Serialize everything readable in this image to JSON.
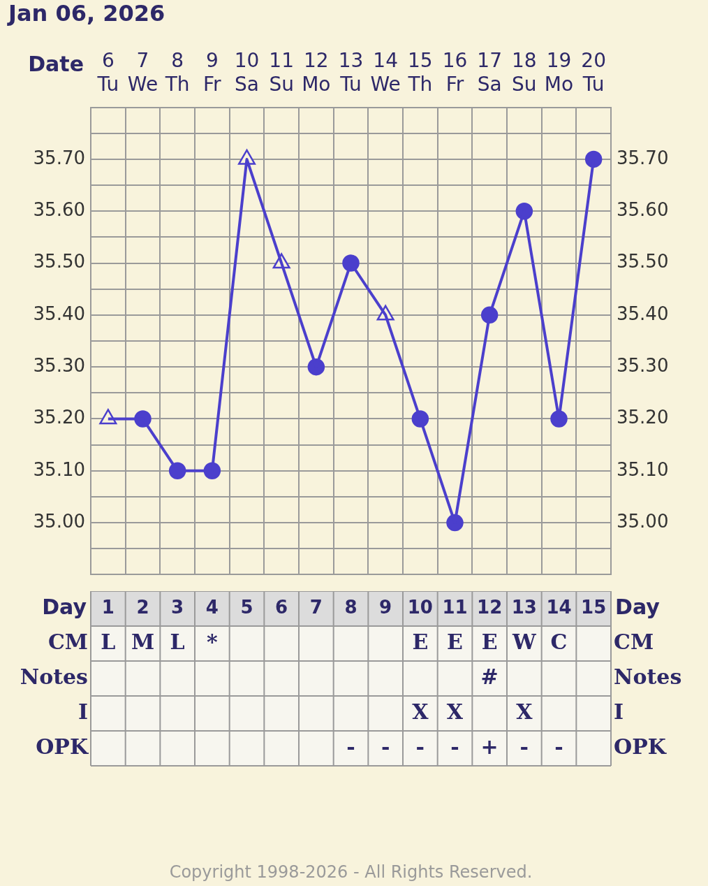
{
  "chart_data": [
    {
      "type": "line",
      "title": "Jan 06, 2026",
      "xlabel": "Date",
      "categories": [
        "6 Tu",
        "7 We",
        "8 Th",
        "9 Fr",
        "10 Sa",
        "11 Su",
        "12 Mo",
        "13 Tu",
        "14 We",
        "15 Th",
        "16 Fr",
        "17 Sa",
        "18 Su",
        "19 Mo",
        "20 Tu"
      ],
      "series": [
        {
          "type": "line",
          "marker": "none",
          "color": "#4b3fcc",
          "values": [
            35.2,
            35.2,
            35.1,
            35.1,
            35.7,
            35.5,
            35.3,
            35.5,
            35.4,
            35.2,
            35.0,
            35.4,
            35.6,
            35.2,
            35.7
          ]
        },
        {
          "type": "scatter",
          "marker": "circle",
          "color": "#4b3fcc",
          "values": [
            null,
            35.2,
            35.1,
            35.1,
            null,
            null,
            35.3,
            35.5,
            null,
            35.2,
            35.0,
            35.4,
            35.6,
            35.2,
            35.7
          ]
        },
        {
          "type": "scatter",
          "marker": "triangle",
          "color": "#4b3fcc",
          "values": [
            35.2,
            null,
            null,
            null,
            35.7,
            35.5,
            null,
            null,
            35.4,
            null,
            null,
            null,
            null,
            null,
            null
          ]
        }
      ],
      "ylim": [
        34.9,
        35.8
      ],
      "yticks": [
        {
          "value": 34.9,
          "label": null
        },
        {
          "value": 34.95,
          "label": null
        },
        {
          "value": 35.0,
          "label": "35.00"
        },
        {
          "value": 35.05,
          "label": null
        },
        {
          "value": 35.1,
          "label": "35.10"
        },
        {
          "value": 35.15,
          "label": null
        },
        {
          "value": 35.2,
          "label": "35.20"
        },
        {
          "value": 35.25,
          "label": null
        },
        {
          "value": 35.3,
          "label": "35.30"
        },
        {
          "value": 35.35,
          "label": null
        },
        {
          "value": 35.4,
          "label": "35.40"
        },
        {
          "value": 35.45,
          "label": null
        },
        {
          "value": 35.5,
          "label": "35.50"
        },
        {
          "value": 35.55,
          "label": null
        },
        {
          "value": 35.6,
          "label": "35.60"
        },
        {
          "value": 35.65,
          "label": null
        },
        {
          "value": 35.7,
          "label": "35.70"
        },
        {
          "value": 35.75,
          "label": null
        }
      ],
      "y2lim": [
        34.9,
        35.8
      ],
      "y2ticks": [
        {
          "value": 34.9,
          "label": null
        },
        {
          "value": 34.95,
          "label": null
        },
        {
          "value": 35.0,
          "label": "35.00"
        },
        {
          "value": 35.05,
          "label": null
        },
        {
          "value": 35.1,
          "label": "35.10"
        },
        {
          "value": 35.15,
          "label": null
        },
        {
          "value": 35.2,
          "label": "35.20"
        },
        {
          "value": 35.25,
          "label": null
        },
        {
          "value": 35.3,
          "label": "35.30"
        },
        {
          "value": 35.35,
          "label": null
        },
        {
          "value": 35.4,
          "label": "35.40"
        },
        {
          "value": 35.45,
          "label": null
        },
        {
          "value": 35.5,
          "label": "35.50"
        },
        {
          "value": 35.55,
          "label": null
        },
        {
          "value": 35.6,
          "label": "35.60"
        },
        {
          "value": 35.65,
          "label": null
        },
        {
          "value": 35.7,
          "label": "35.70"
        },
        {
          "value": 35.75,
          "label": null
        }
      ],
      "grid": true,
      "legend": false
    },
    {
      "type": "heatmap",
      "xlabel": "Day",
      "categories": [
        "1",
        "2",
        "3",
        "4",
        "5",
        "6",
        "7",
        "8",
        "9",
        "10",
        "11",
        "12",
        "13",
        "14",
        "15"
      ],
      "y_categories": [
        "CM",
        "Notes",
        "I",
        "OPK"
      ],
      "y2_categories": [
        "CM",
        "Notes",
        "I",
        "OPK"
      ],
      "cells": [
        [
          null,
          null,
          null,
          null,
          null,
          null,
          null,
          null,
          null,
          null,
          null,
          null,
          null,
          null,
          null
        ],
        [
          null,
          null,
          null,
          null,
          null,
          null,
          null,
          null,
          null,
          null,
          null,
          null,
          null,
          null,
          null
        ],
        [
          null,
          null,
          null,
          null,
          null,
          null,
          null,
          null,
          null,
          null,
          null,
          null,
          null,
          null,
          null
        ],
        [
          null,
          null,
          null,
          null,
          null,
          null,
          null,
          null,
          null,
          null,
          null,
          null,
          null,
          null,
          null
        ]
      ],
      "cell_labels": [
        [
          "L",
          "M",
          "L",
          "*",
          null,
          null,
          null,
          null,
          null,
          "E",
          "E",
          "E",
          "W",
          "C",
          null
        ],
        [
          null,
          null,
          null,
          null,
          null,
          null,
          null,
          null,
          null,
          null,
          null,
          "#",
          null,
          null,
          null
        ],
        [
          null,
          null,
          null,
          null,
          null,
          null,
          null,
          null,
          null,
          "X",
          "X",
          null,
          "X",
          null,
          null
        ],
        [
          null,
          null,
          null,
          null,
          null,
          null,
          null,
          "-",
          "-",
          "-",
          "-",
          "+",
          "-",
          "-",
          null
        ]
      ],
      "annotations": [
        "Copyright 1998-2026 - All Rights Reserved."
      ]
    }
  ]
}
